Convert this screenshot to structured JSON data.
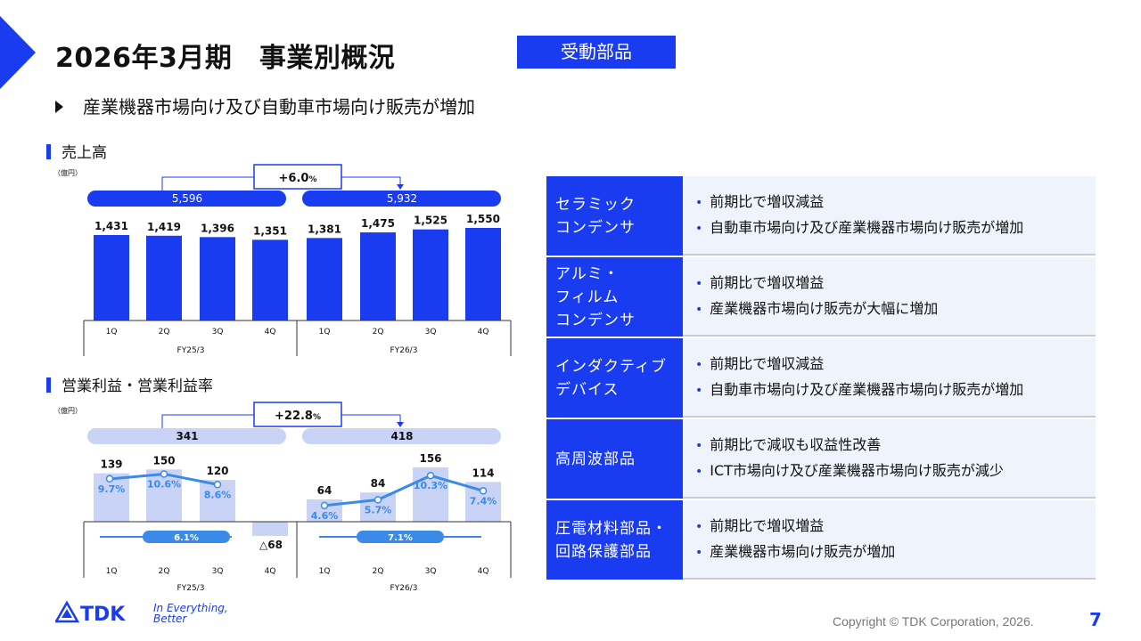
{
  "header": {
    "title": "2026年3月期　事業別概況",
    "segment": "受動部品",
    "headline": "産業機器市場向け及び自動車市場向け販売が増加"
  },
  "colors": {
    "accent": "#1a3cf0",
    "light_bar": "#c9d3f5",
    "line": "#3a8ae8",
    "table_bg": "#eef3fc"
  },
  "sales": {
    "label": "売上高",
    "unit": "（億円）",
    "growth": "+6.0",
    "growth_suffix": "%",
    "total_fy25": "5,596",
    "total_fy26": "5,932"
  },
  "profit": {
    "label": "営業利益・営業利益率",
    "unit": "（億円）",
    "growth": "+22.8",
    "growth_suffix": "%",
    "total_fy25": "341",
    "total_fy26": "418",
    "margin_fy25": "6.1%",
    "margin_fy26": "7.1%"
  },
  "chart_data": [
    {
      "type": "bar",
      "title": "売上高",
      "unit": "（億円）",
      "categories": [
        "1Q",
        "2Q",
        "3Q",
        "4Q",
        "1Q",
        "2Q",
        "3Q",
        "4Q"
      ],
      "groups": [
        "FY25/3",
        "FY26/3"
      ],
      "values": [
        1431,
        1419,
        1396,
        1351,
        1381,
        1475,
        1525,
        1550
      ],
      "labels": [
        "1,431",
        "1,419",
        "1,396",
        "1,351",
        "1,381",
        "1,475",
        "1,525",
        "1,550"
      ],
      "totals": [
        "5,596",
        "5,932"
      ],
      "growth": "+6.0%"
    },
    {
      "type": "bar",
      "title": "営業利益・営業利益率",
      "unit": "（億円）",
      "categories": [
        "1Q",
        "2Q",
        "3Q",
        "4Q",
        "1Q",
        "2Q",
        "3Q",
        "4Q"
      ],
      "groups": [
        "FY25/3",
        "FY26/3"
      ],
      "values": [
        139,
        150,
        120,
        -68,
        64,
        84,
        156,
        114
      ],
      "labels": [
        "139",
        "150",
        "120",
        "△68",
        "64",
        "84",
        "156",
        "114"
      ],
      "margins": [
        9.7,
        10.6,
        8.6,
        null,
        4.6,
        5.7,
        10.3,
        7.4
      ],
      "margin_labels": [
        "9.7%",
        "10.6%",
        "8.6%",
        "",
        "4.6%",
        "5.7%",
        "10.3%",
        "7.4%"
      ],
      "totals": [
        "341",
        "418"
      ],
      "annual_margins": [
        "6.1%",
        "7.1%"
      ],
      "growth": "+22.8%"
    }
  ],
  "table": {
    "rows": [
      {
        "category": [
          "セラミック",
          "コンデンサ"
        ],
        "bullets": [
          "前期比で増収減益",
          "自動車市場向け及び産業機器市場向け販売が増加"
        ]
      },
      {
        "category": [
          "アルミ・",
          "フィルム",
          "コンデンサ"
        ],
        "bullets": [
          "前期比で増収増益",
          "産業機器市場向け販売が大幅に増加"
        ]
      },
      {
        "category": [
          "インダクティブ",
          "デバイス"
        ],
        "bullets": [
          "前期比で増収減益",
          "自動車市場向け及び産業機器市場向け販売が増加"
        ]
      },
      {
        "category": [
          "高周波部品"
        ],
        "bullets": [
          "前期比で減収も収益性改善",
          "ICT市場向け及び産業機器市場向け販売が減少"
        ]
      },
      {
        "category": [
          "圧電材料部品・",
          "回路保護部品"
        ],
        "bullets": [
          "前期比で増収増益",
          "産業機器市場向け販売が増加"
        ]
      }
    ]
  },
  "footer": {
    "logo_text": "TDK",
    "tagline_1": "In Everything,",
    "tagline_2": "Better",
    "copyright": "Copyright  © TDK Corporation, 2026.",
    "page": "7"
  }
}
